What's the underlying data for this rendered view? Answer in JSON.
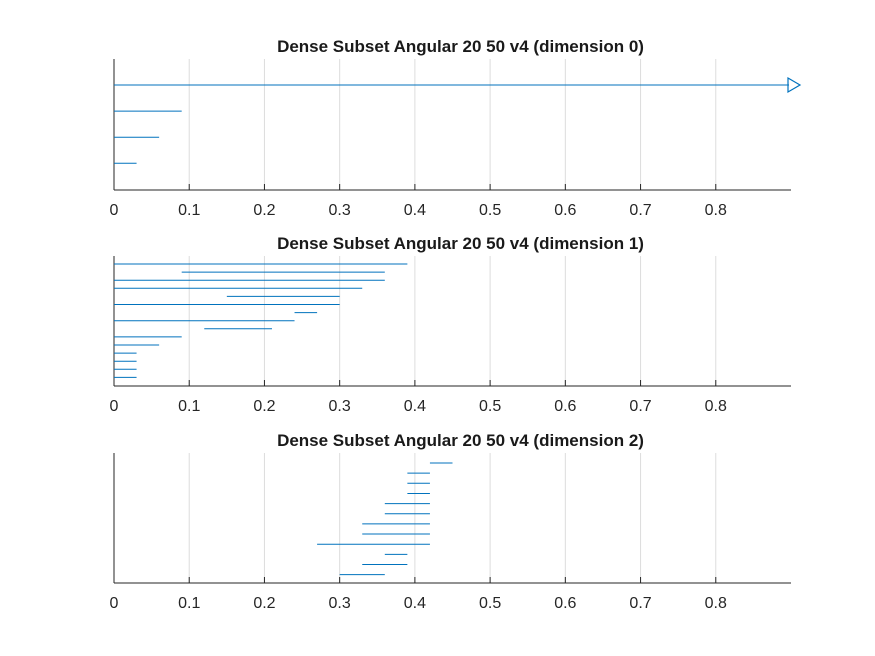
{
  "chart_data": [
    {
      "type": "barcode",
      "title": "Dense Subset Angular 20 50 v4 (dimension 0)",
      "xlim": [
        0,
        0.9
      ],
      "xticks": [
        0,
        0.1,
        0.2,
        0.3,
        0.4,
        0.5,
        0.6,
        0.7,
        0.8
      ],
      "xtick_labels": [
        "0",
        "0.1",
        "0.2",
        "0.3",
        "0.4",
        "0.5",
        "0.6",
        "0.7",
        "0.8"
      ],
      "grid": true,
      "intervals": [
        {
          "birth": 0,
          "death": 0.9,
          "infinite": true
        },
        {
          "birth": 0,
          "death": 0.09
        },
        {
          "birth": 0,
          "death": 0.06
        },
        {
          "birth": 0,
          "death": 0.03
        }
      ]
    },
    {
      "type": "barcode",
      "title": "Dense Subset Angular 20 50 v4 (dimension 1)",
      "xlim": [
        0,
        0.9
      ],
      "xticks": [
        0,
        0.1,
        0.2,
        0.3,
        0.4,
        0.5,
        0.6,
        0.7,
        0.8
      ],
      "xtick_labels": [
        "0",
        "0.1",
        "0.2",
        "0.3",
        "0.4",
        "0.5",
        "0.6",
        "0.7",
        "0.8"
      ],
      "grid": true,
      "intervals": [
        {
          "birth": 0,
          "death": 0.39
        },
        {
          "birth": 0.09,
          "death": 0.36
        },
        {
          "birth": 0,
          "death": 0.36
        },
        {
          "birth": 0,
          "death": 0.33
        },
        {
          "birth": 0.15,
          "death": 0.3
        },
        {
          "birth": 0,
          "death": 0.3
        },
        {
          "birth": 0.24,
          "death": 0.27
        },
        {
          "birth": 0,
          "death": 0.24
        },
        {
          "birth": 0.12,
          "death": 0.21
        },
        {
          "birth": 0,
          "death": 0.09
        },
        {
          "birth": 0,
          "death": 0.06
        },
        {
          "birth": 0,
          "death": 0.03
        },
        {
          "birth": 0,
          "death": 0.03
        },
        {
          "birth": 0,
          "death": 0.03
        },
        {
          "birth": 0,
          "death": 0.03
        }
      ]
    },
    {
      "type": "barcode",
      "title": "Dense Subset Angular 20 50 v4 (dimension 2)",
      "xlim": [
        0,
        0.9
      ],
      "xticks": [
        0,
        0.1,
        0.2,
        0.3,
        0.4,
        0.5,
        0.6,
        0.7,
        0.8
      ],
      "xtick_labels": [
        "0",
        "0.1",
        "0.2",
        "0.3",
        "0.4",
        "0.5",
        "0.6",
        "0.7",
        "0.8"
      ],
      "grid": true,
      "intervals": [
        {
          "birth": 0.42,
          "death": 0.45
        },
        {
          "birth": 0.39,
          "death": 0.42
        },
        {
          "birth": 0.39,
          "death": 0.42
        },
        {
          "birth": 0.39,
          "death": 0.42
        },
        {
          "birth": 0.36,
          "death": 0.42
        },
        {
          "birth": 0.36,
          "death": 0.42
        },
        {
          "birth": 0.33,
          "death": 0.42
        },
        {
          "birth": 0.33,
          "death": 0.42
        },
        {
          "birth": 0.27,
          "death": 0.42
        },
        {
          "birth": 0.36,
          "death": 0.39
        },
        {
          "birth": 0.33,
          "death": 0.39
        },
        {
          "birth": 0.3,
          "death": 0.36
        }
      ]
    }
  ],
  "colors": {
    "bar": "#0072bd",
    "axis": "#262626",
    "grid": "#dcdcdc",
    "title": "#1a1a1a"
  }
}
